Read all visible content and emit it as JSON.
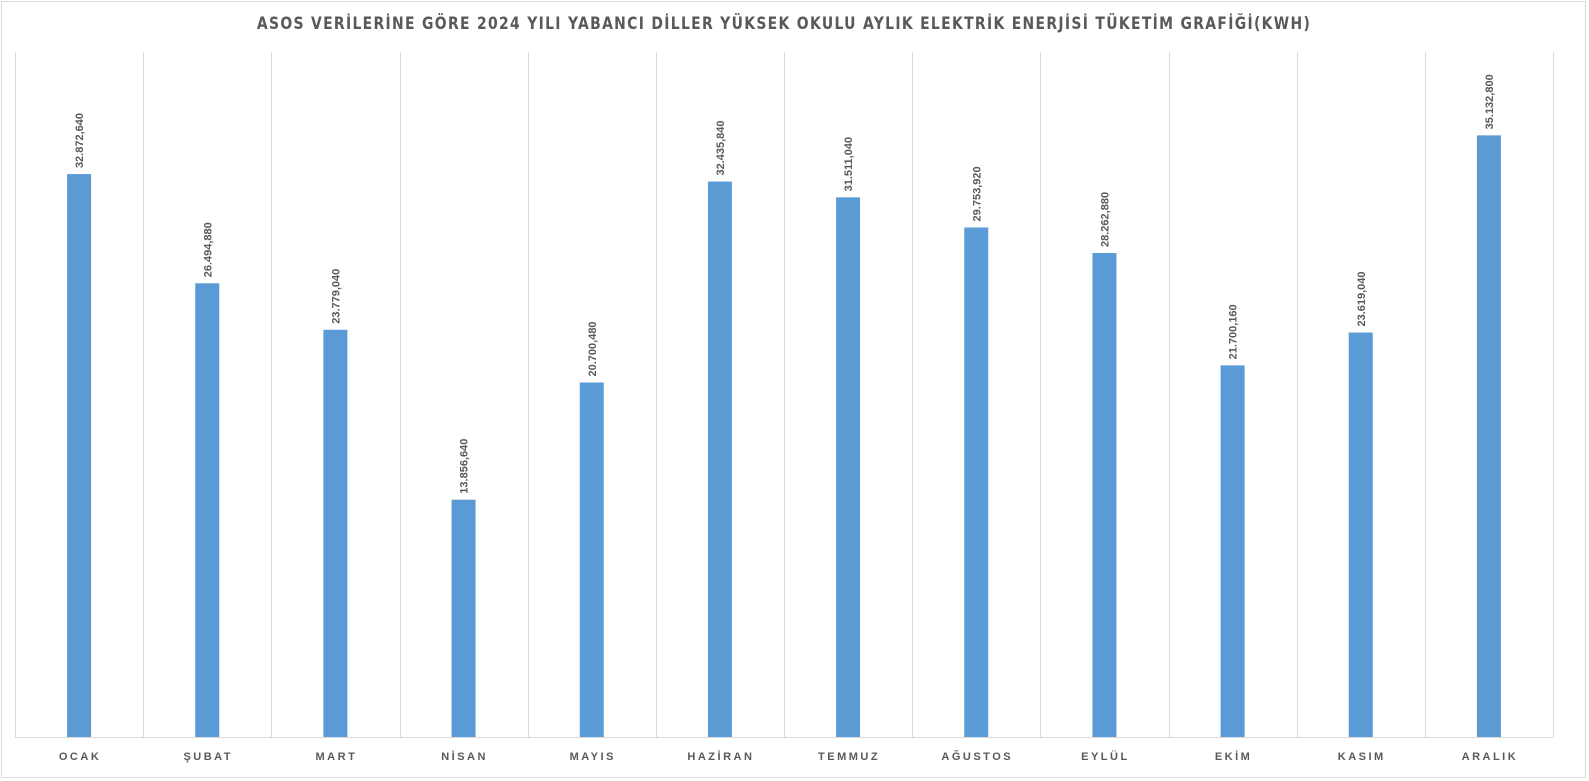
{
  "chart_data": {
    "type": "bar",
    "title": "ASOS VERİLERİNE GÖRE 2024 YILI YABANCI DİLLER YÜKSEK OKULU AYLIK ELEKTRİK ENERJİSİ TÜKETİM GRAFİĞİ(KWH)",
    "xlabel": "",
    "ylabel": "",
    "ylim": [
      0,
      40000000
    ],
    "grid": "vertical category separators",
    "legend": "none",
    "bar_color": "#5b9bd5",
    "categories": [
      "OCAK",
      "ŞUBAT",
      "MART",
      "NİSAN",
      "MAYIS",
      "HAZİRAN",
      "TEMMUZ",
      "AĞUSTOS",
      "EYLÜL",
      "EKİM",
      "KASIM",
      "ARALIK"
    ],
    "values": [
      32872640,
      26494880,
      23779040,
      13856640,
      20700480,
      32435840,
      31511040,
      29753920,
      28262880,
      21700160,
      23619040,
      35132800
    ],
    "data_labels": [
      "32.872,640",
      "26.494,880",
      "23.779,040",
      "13.856,640",
      "20.700,480",
      "32.435,840",
      "31.511,040",
      "29.753,920",
      "28.262,880",
      "21.700,160",
      "23.619,040",
      "35.132,800"
    ]
  }
}
